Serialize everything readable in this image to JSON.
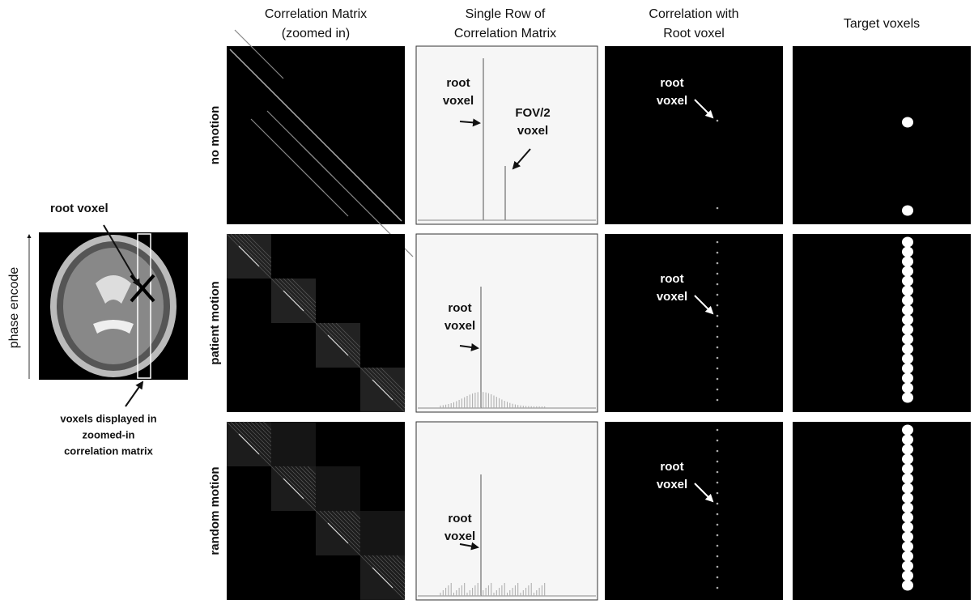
{
  "header_columns": [
    [
      "Correlation Matrix",
      "(zoomed in)"
    ],
    [
      "Single Row of",
      "Correlation Matrix"
    ],
    [
      "Correlation with",
      "Root voxel"
    ],
    [
      "Target voxels"
    ]
  ],
  "row_labels": [
    "no motion",
    "patient motion",
    "random motion"
  ],
  "left_panel": {
    "title": "root voxel",
    "axis_label": "phase encode",
    "caption": [
      "voxels displayed in",
      "zoomed-in",
      "correlation matrix"
    ]
  },
  "single_row_labels": [
    [
      [
        "root",
        "voxel"
      ],
      [
        "FOV/2",
        "voxel"
      ]
    ],
    [
      [
        "root",
        "voxel"
      ]
    ],
    [
      [
        "root",
        "voxel"
      ]
    ]
  ],
  "correlation_labels": [
    [
      "root",
      "voxel"
    ],
    [
      "root",
      "voxel"
    ],
    [
      "root",
      "voxel"
    ]
  ]
}
